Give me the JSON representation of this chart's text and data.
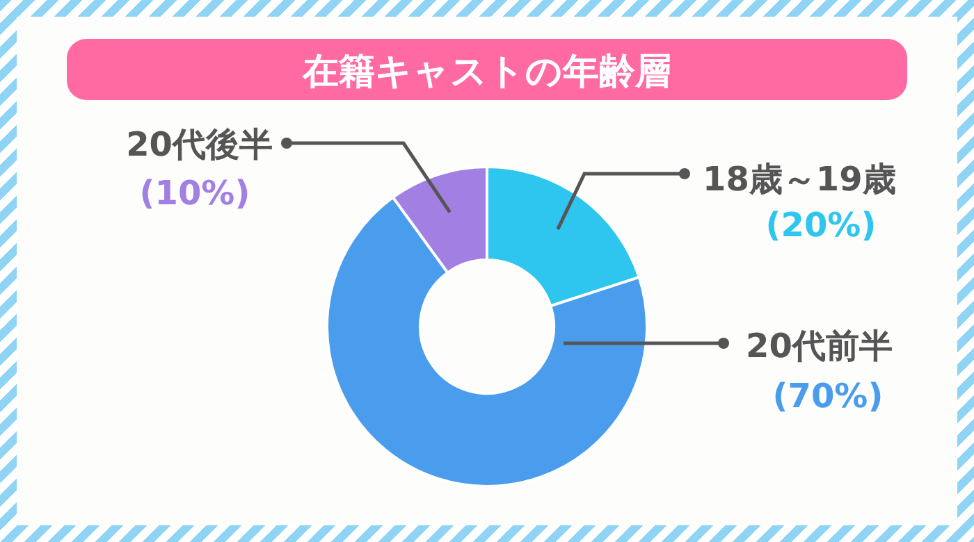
{
  "chart_data": {
    "type": "donut",
    "title": "在籍キャストの年齢層",
    "categories": [
      "18歳～19歳",
      "20代前半",
      "20代後半"
    ],
    "values": [
      20,
      70,
      10
    ],
    "value_labels": [
      "(20%)",
      "(70%)",
      "(10%)"
    ],
    "colors": [
      "#2ec5ef",
      "#4a9ded",
      "#a27fe2"
    ]
  }
}
